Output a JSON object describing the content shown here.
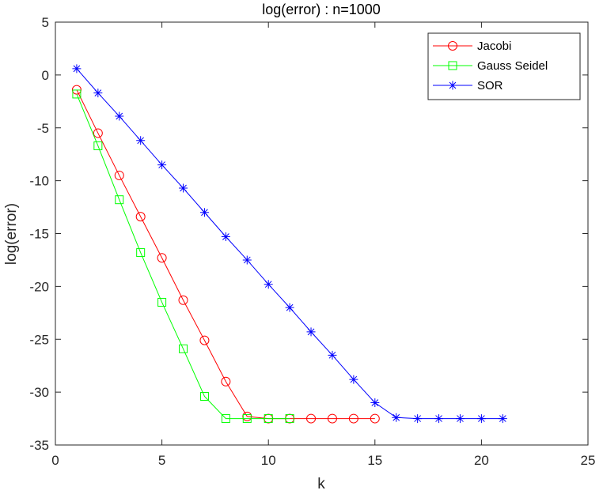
{
  "chart_data": {
    "type": "line",
    "title": "log(error) : n=1000",
    "xlabel": "k",
    "ylabel": "log(error)",
    "xlim": [
      0,
      25
    ],
    "ylim": [
      -35,
      5
    ],
    "xticks": [
      0,
      5,
      10,
      15,
      20,
      25
    ],
    "yticks": [
      5,
      0,
      -5,
      -10,
      -15,
      -20,
      -25,
      -30,
      -35
    ],
    "grid": false,
    "legend_position": "top-right",
    "series": [
      {
        "name": "Jacobi",
        "color": "#ff0000",
        "marker": "circle",
        "x": [
          1,
          2,
          3,
          4,
          5,
          6,
          7,
          8,
          9,
          10,
          11,
          12,
          13,
          14,
          15
        ],
        "y": [
          -1.4,
          -5.5,
          -9.5,
          -13.4,
          -17.3,
          -21.3,
          -25.1,
          -29.0,
          -32.3,
          -32.5,
          -32.5,
          -32.5,
          -32.5,
          -32.5,
          -32.5
        ]
      },
      {
        "name": "Gauss Seidel",
        "color": "#00ff00",
        "marker": "square",
        "x": [
          1,
          2,
          3,
          4,
          5,
          6,
          7,
          8,
          9,
          10,
          11
        ],
        "y": [
          -1.8,
          -6.7,
          -11.8,
          -16.8,
          -21.5,
          -25.9,
          -30.4,
          -32.5,
          -32.5,
          -32.5,
          -32.5
        ]
      },
      {
        "name": "SOR",
        "color": "#0000ff",
        "marker": "asterisk",
        "x": [
          1,
          2,
          3,
          4,
          5,
          6,
          7,
          8,
          9,
          10,
          11,
          12,
          13,
          14,
          15,
          16,
          17,
          18,
          19,
          20,
          21
        ],
        "y": [
          0.6,
          -1.7,
          -3.9,
          -6.2,
          -8.5,
          -10.7,
          -13.0,
          -15.3,
          -17.5,
          -19.8,
          -22.0,
          -24.3,
          -26.5,
          -28.8,
          -31.0,
          -32.4,
          -32.5,
          -32.5,
          -32.5,
          -32.5,
          -32.5
        ]
      }
    ]
  }
}
